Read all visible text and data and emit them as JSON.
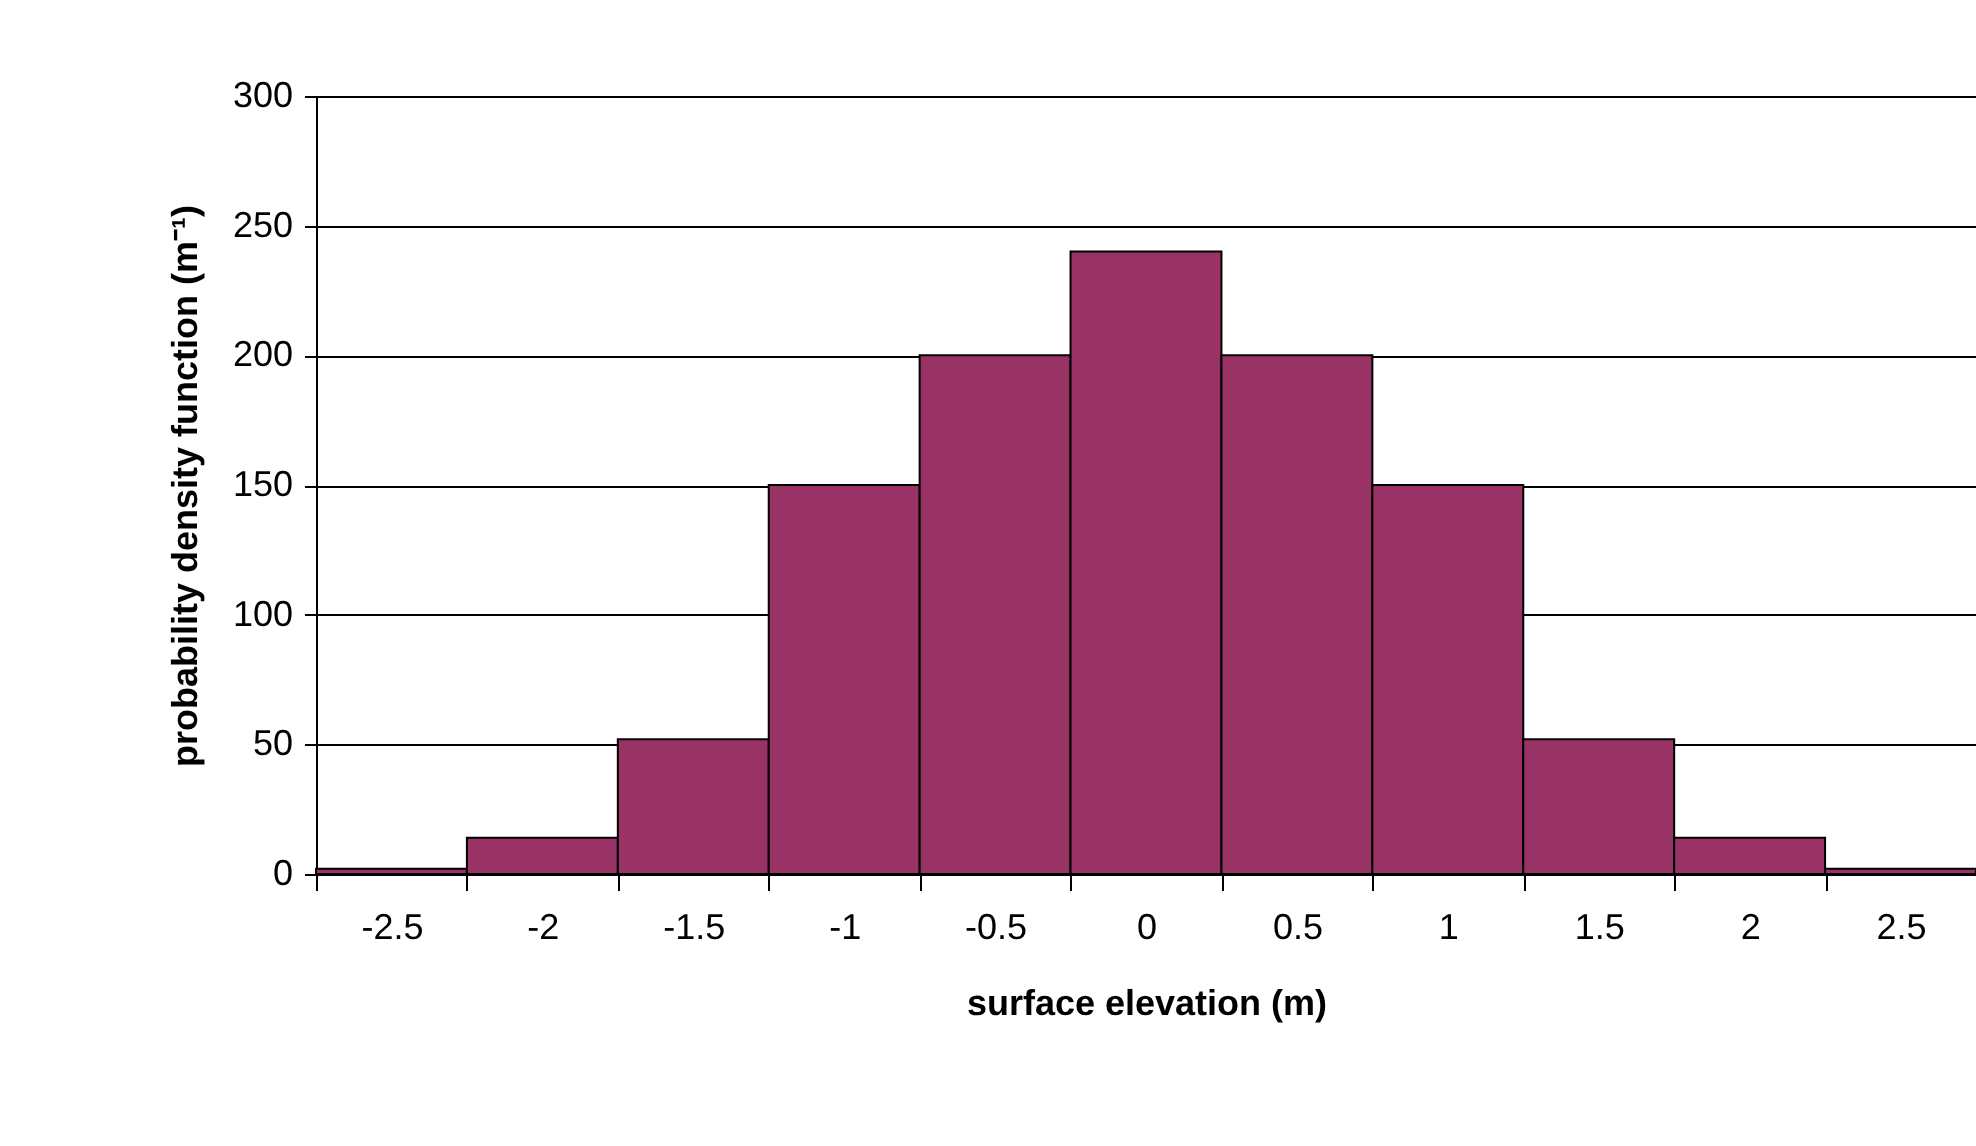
{
  "chart_data": {
    "type": "bar",
    "xlabel": "surface elevation (m)",
    "ylabel": "probability density function (m⁻¹)",
    "categories": [
      "-2.5",
      "-2",
      "-1.5",
      "-1",
      "-0.5",
      "0",
      "0.5",
      "1",
      "1.5",
      "2",
      "2.5"
    ],
    "values": [
      2,
      14,
      52,
      150,
      200,
      240,
      200,
      150,
      52,
      14,
      2
    ],
    "color": "#993366",
    "ylim": [
      0,
      300
    ],
    "yticks": [
      0,
      50,
      100,
      150,
      200,
      250,
      300
    ],
    "grid": "y"
  }
}
